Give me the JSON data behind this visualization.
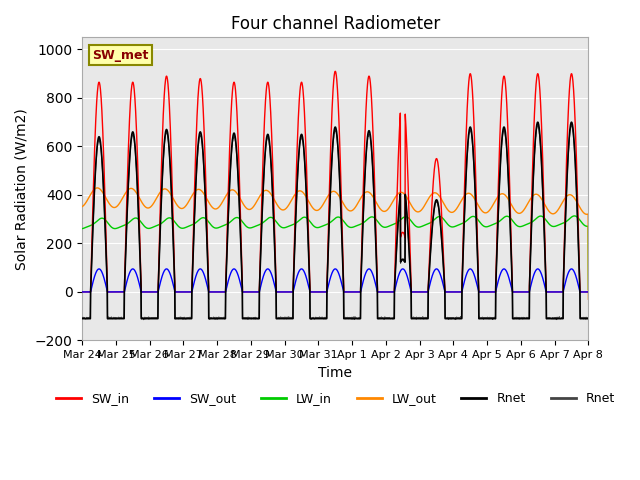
{
  "title": "Four channel Radiometer",
  "xlabel": "Time",
  "ylabel": "Solar Radiation (W/m2)",
  "ylim": [
    -200,
    1050
  ],
  "yticks": [
    -200,
    0,
    200,
    400,
    600,
    800,
    1000
  ],
  "background_color": "#e8e8e8",
  "annotation_text": "SW_met",
  "annotation_facecolor": "#ffffaa",
  "annotation_edgecolor": "#888800",
  "annotation_textcolor": "#880000",
  "colors": {
    "SW_in": "#ff0000",
    "SW_out": "#0000ff",
    "LW_in": "#00cc00",
    "LW_out": "#ff8800",
    "Rnet_black": "#000000",
    "Rnet_dark": "#444444"
  },
  "x_tick_labels": [
    "Mar 24",
    "Mar 25",
    "Mar 26",
    "Mar 27",
    "Mar 28",
    "Mar 29",
    "Mar 30",
    "Mar 31",
    "Apr 1",
    "Apr 2",
    "Apr 3",
    "Apr 4",
    "Apr 5",
    "Apr 6",
    "Apr 7",
    "Apr 8"
  ],
  "n_days": 15,
  "SW_in_peaks": [
    865,
    865,
    890,
    880,
    865,
    865,
    865,
    910,
    890,
    820,
    550,
    900,
    890,
    900,
    900
  ],
  "Rnet_peaks": [
    640,
    660,
    670,
    660,
    655,
    650,
    650,
    680,
    665,
    450,
    380,
    680,
    680,
    700,
    700
  ]
}
